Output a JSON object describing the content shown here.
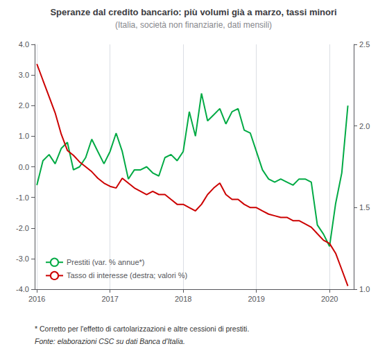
{
  "chart_data": {
    "type": "line",
    "title": "Speranze dal credito bancario: più volumi già a marzo, tassi minori",
    "subtitle": "(Italia, società non finanziarie, dati mensili)",
    "annotations": [
      "* Corretto per l'effetto di cartolarizzazioni e altre cessioni di prestiti.",
      "Fonte: elaborazioni CSC su dati Banca d'Italia."
    ],
    "x": [
      2016.0,
      2016.083,
      2016.167,
      2016.25,
      2016.333,
      2016.417,
      2016.5,
      2016.583,
      2016.667,
      2016.75,
      2016.833,
      2016.917,
      2017.0,
      2017.083,
      2017.167,
      2017.25,
      2017.333,
      2017.417,
      2017.5,
      2017.583,
      2017.667,
      2017.75,
      2017.833,
      2017.917,
      2018.0,
      2018.083,
      2018.167,
      2018.25,
      2018.333,
      2018.417,
      2018.5,
      2018.583,
      2018.667,
      2018.75,
      2018.833,
      2018.917,
      2019.0,
      2019.083,
      2019.167,
      2019.25,
      2019.333,
      2019.417,
      2019.5,
      2019.583,
      2019.667,
      2019.75,
      2019.833,
      2019.917,
      2020.0,
      2020.083,
      2020.167,
      2020.25
    ],
    "series": [
      {
        "name": "Prestiti (var. % annue*)",
        "color": "#00aa44",
        "values": [
          -0.6,
          0.2,
          0.4,
          0.1,
          0.6,
          0.8,
          -0.1,
          -0.0,
          0.3,
          0.9,
          0.5,
          0.1,
          0.5,
          1.1,
          0.5,
          -0.4,
          -0.1,
          -0.1,
          0.0,
          -0.2,
          -0.3,
          0.3,
          0.4,
          0.2,
          0.5,
          1.8,
          1.0,
          2.4,
          1.5,
          1.7,
          1.9,
          1.4,
          1.8,
          1.9,
          1.2,
          1.1,
          0.5,
          -0.1,
          -0.4,
          -0.5,
          -0.4,
          -0.5,
          -0.6,
          -0.4,
          -0.4,
          -0.5,
          -1.9,
          -2.2,
          -2.6,
          -1.2,
          -0.2,
          2.0
        ]
      },
      {
        "name": "Tasso di interesse (destra; valori %)",
        "color": "#cc0000",
        "axis": "y2",
        "values": [
          2.38,
          2.28,
          2.18,
          2.08,
          1.95,
          1.85,
          1.82,
          1.78,
          1.75,
          1.72,
          1.68,
          1.65,
          1.63,
          1.62,
          1.68,
          1.65,
          1.62,
          1.6,
          1.58,
          1.6,
          1.58,
          1.58,
          1.55,
          1.52,
          1.52,
          1.5,
          1.48,
          1.52,
          1.58,
          1.62,
          1.65,
          1.58,
          1.55,
          1.55,
          1.52,
          1.5,
          1.5,
          1.48,
          1.46,
          1.45,
          1.44,
          1.44,
          1.42,
          1.42,
          1.4,
          1.38,
          1.34,
          1.3,
          1.28,
          1.22,
          1.12,
          1.02
        ]
      }
    ],
    "xlim": [
      2015.97,
      2020.33
    ],
    "xticks": [
      2016,
      2017,
      2018,
      2019,
      2020
    ],
    "ylim": [
      -4.0,
      4.0
    ],
    "yticks": [
      {
        "value": -4.0,
        "label": "-4.0"
      },
      {
        "value": -3.0,
        "label": "-3.0"
      },
      {
        "value": -2.0,
        "label": "-2.0"
      },
      {
        "value": -1.0,
        "label": "-1.0"
      },
      {
        "value": 0.0,
        "label": "0.0"
      },
      {
        "value": 1.0,
        "label": "1.0"
      },
      {
        "value": 2.0,
        "label": "2.0"
      },
      {
        "value": 3.0,
        "label": "3.0"
      },
      {
        "value": 4.0,
        "label": "4.0"
      }
    ],
    "y2lim": [
      1.0,
      2.5
    ],
    "y2ticks": [
      {
        "value": 1.0,
        "label": "1.0"
      },
      {
        "value": 1.5,
        "label": "1.5"
      },
      {
        "value": 2.0,
        "label": "2.0"
      },
      {
        "value": 2.5,
        "label": "2.5"
      }
    ],
    "grid": "x",
    "legend": "lower left"
  }
}
